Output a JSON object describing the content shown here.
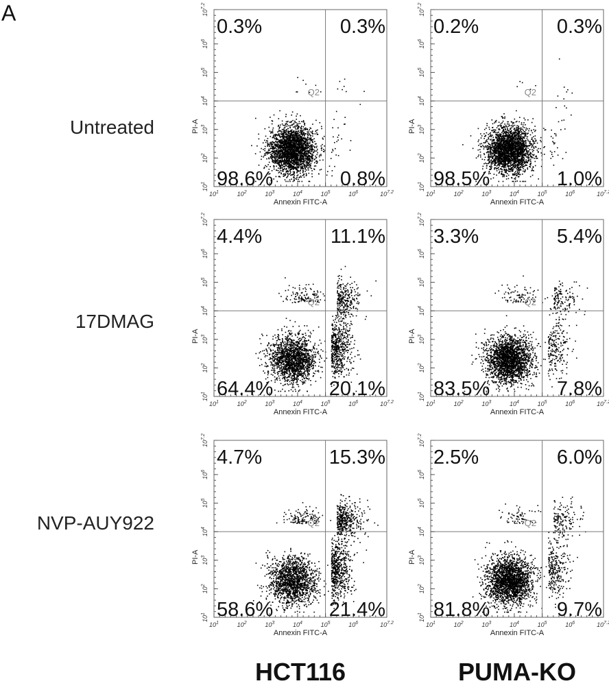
{
  "panel_letter": "A",
  "columns": [
    "HCT116",
    "PUMA-KO"
  ],
  "rows": [
    "Untreated",
    "17DMAG",
    "NVP-AUY922"
  ],
  "chart_data": [
    {
      "type": "scatter",
      "row": "Untreated",
      "column": "HCT116",
      "xlabel": "Annexin FITC-A",
      "ylabel": "PI-A",
      "xlim": [
        1,
        7.2
      ],
      "ylim": [
        1,
        7.2
      ],
      "x_gate": 5.0,
      "y_gate": 4.0,
      "gate_label": "Q2",
      "x_ticks": [
        "10^1",
        "10^2",
        "10^3",
        "10^4",
        "10^5",
        "10^6",
        "10^7.2"
      ],
      "y_ticks": [
        "10^1",
        "10^2",
        "10^3",
        "10^4",
        "10^5",
        "10^6",
        "10^7.2"
      ],
      "quadrants": {
        "upper_left": "0.3%",
        "upper_right": "0.3%",
        "lower_left": "98.6%",
        "lower_right": "0.8%"
      }
    },
    {
      "type": "scatter",
      "row": "Untreated",
      "column": "PUMA-KO",
      "xlabel": "Annexin FITC-A",
      "ylabel": "PI-A",
      "xlim": [
        1,
        7.2
      ],
      "ylim": [
        1,
        7.2
      ],
      "x_gate": 5.0,
      "y_gate": 4.0,
      "gate_label": "Q2",
      "x_ticks": [
        "10^1",
        "10^2",
        "10^3",
        "10^4",
        "10^5",
        "10^6",
        "10^7.2"
      ],
      "y_ticks": [
        "10^1",
        "10^2",
        "10^3",
        "10^4",
        "10^5",
        "10^6",
        "10^7.2"
      ],
      "quadrants": {
        "upper_left": "0.2%",
        "upper_right": "0.3%",
        "lower_left": "98.5%",
        "lower_right": "1.0%"
      }
    },
    {
      "type": "scatter",
      "row": "17DMAG",
      "column": "HCT116",
      "xlabel": "Annexin FITC-A",
      "ylabel": "PI-A",
      "xlim": [
        1,
        7.2
      ],
      "ylim": [
        1,
        7.2
      ],
      "x_gate": 5.0,
      "y_gate": 4.0,
      "gate_label": "Q2",
      "x_ticks": [
        "10^1",
        "10^2",
        "10^3",
        "10^4",
        "10^5",
        "10^6",
        "10^7.2"
      ],
      "y_ticks": [
        "10^1",
        "10^2",
        "10^3",
        "10^4",
        "10^5",
        "10^6",
        "10^7.2"
      ],
      "quadrants": {
        "upper_left": "4.4%",
        "upper_right": "11.1%",
        "lower_left": "64.4%",
        "lower_right": "20.1%"
      }
    },
    {
      "type": "scatter",
      "row": "17DMAG",
      "column": "PUMA-KO",
      "xlabel": "Annexin FITC-A",
      "ylabel": "PI-A",
      "xlim": [
        1,
        7.2
      ],
      "ylim": [
        1,
        7.2
      ],
      "x_gate": 5.0,
      "y_gate": 4.0,
      "gate_label": "Q2",
      "x_ticks": [
        "10^1",
        "10^2",
        "10^3",
        "10^4",
        "10^5",
        "10^6",
        "10^7.2"
      ],
      "y_ticks": [
        "10^1",
        "10^2",
        "10^3",
        "10^4",
        "10^5",
        "10^6",
        "10^7.2"
      ],
      "quadrants": {
        "upper_left": "3.3%",
        "upper_right": "5.4%",
        "lower_left": "83.5%",
        "lower_right": "7.8%"
      }
    },
    {
      "type": "scatter",
      "row": "NVP-AUY922",
      "column": "HCT116",
      "xlabel": "Annexin FITC-A",
      "ylabel": "PI-A",
      "xlim": [
        1,
        7.2
      ],
      "ylim": [
        1,
        7.2
      ],
      "x_gate": 5.0,
      "y_gate": 4.0,
      "gate_label": "Q2",
      "x_ticks": [
        "10^1",
        "10^2",
        "10^3",
        "10^4",
        "10^5",
        "10^6",
        "10^7.2"
      ],
      "y_ticks": [
        "10^1",
        "10^2",
        "10^3",
        "10^4",
        "10^5",
        "10^6",
        "10^7.2"
      ],
      "quadrants": {
        "upper_left": "4.7%",
        "upper_right": "15.3%",
        "lower_left": "58.6%",
        "lower_right": "21.4%"
      }
    },
    {
      "type": "scatter",
      "row": "NVP-AUY922",
      "column": "PUMA-KO",
      "xlabel": "Annexin FITC-A",
      "ylabel": "PI-A",
      "xlim": [
        1,
        7.2
      ],
      "ylim": [
        1,
        7.2
      ],
      "x_gate": 5.0,
      "y_gate": 4.0,
      "gate_label": "Q2",
      "x_ticks": [
        "10^1",
        "10^2",
        "10^3",
        "10^4",
        "10^5",
        "10^6",
        "10^7.2"
      ],
      "y_ticks": [
        "10^1",
        "10^2",
        "10^3",
        "10^4",
        "10^5",
        "10^6",
        "10^7.2"
      ],
      "quadrants": {
        "upper_left": "2.5%",
        "upper_right": "6.0%",
        "lower_left": "81.8%",
        "lower_right": "9.7%"
      }
    }
  ]
}
